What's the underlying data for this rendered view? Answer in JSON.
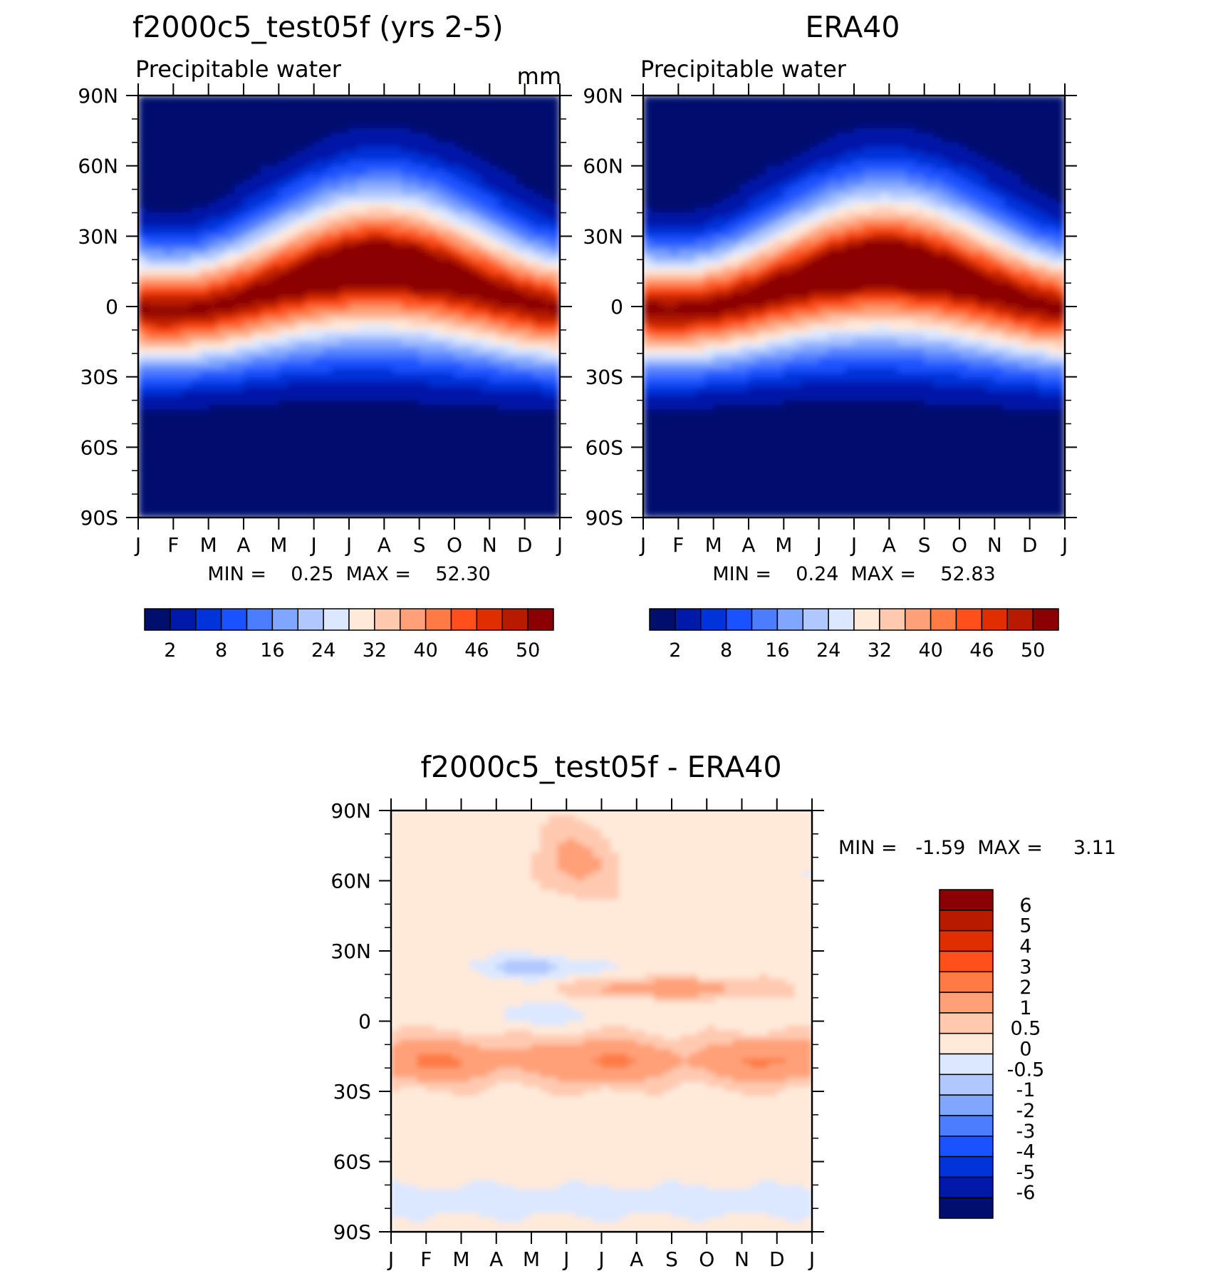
{
  "panels": [
    {
      "title": "f2000c5_test05f (yrs 2-5)",
      "left_label": "Precipitable water",
      "right_label": "mm",
      "min_max": "MIN =    0.25  MAX =    52.30",
      "min_value": 0.25,
      "max_value": 52.3
    },
    {
      "title": "ERA40",
      "left_label": "Precipitable water",
      "right_label": "",
      "min_max": "MIN =    0.24  MAX =    52.83",
      "min_value": 0.24,
      "max_value": 52.83
    },
    {
      "title": "f2000c5_test05f - ERA40",
      "left_label": "",
      "right_label": "",
      "min_max": "MIN =   -1.59  MAX =     3.11",
      "min_value": -1.59,
      "max_value": 3.11
    }
  ],
  "chart_data": [
    {
      "type": "heatmap",
      "title": "f2000c5_test05f (yrs 2-5)",
      "variable": "Precipitable water",
      "units": "mm",
      "x_ticks": [
        "J",
        "F",
        "M",
        "A",
        "M",
        "J",
        "J",
        "A",
        "S",
        "O",
        "N",
        "D",
        "J"
      ],
      "y_ticks": [
        "90N",
        "60N",
        "30N",
        "0",
        "30S",
        "60S",
        "90S"
      ],
      "xlim": [
        0,
        12
      ],
      "ylim": [
        -90,
        90
      ],
      "min": 0.25,
      "max": 52.3,
      "colorbar_labels": [
        "2",
        "8",
        "16",
        "24",
        "32",
        "40",
        "46",
        "50"
      ],
      "colorbar_colors": [
        "#000e6e",
        "#0019a8",
        "#0033d9",
        "#1a52ff",
        "#4d7dff",
        "#80a6ff",
        "#b0c8ff",
        "#dbe8ff",
        "#ffe9d9",
        "#ffc9b0",
        "#ffa078",
        "#ff7a45",
        "#ff4f1a",
        "#e02e00",
        "#b81a00",
        "#8b0000"
      ]
    },
    {
      "type": "heatmap",
      "title": "ERA40",
      "variable": "Precipitable water",
      "x_ticks": [
        "J",
        "F",
        "M",
        "A",
        "M",
        "J",
        "J",
        "A",
        "S",
        "O",
        "N",
        "D",
        "J"
      ],
      "y_ticks": [
        "90N",
        "60N",
        "30N",
        "0",
        "30S",
        "60S",
        "90S"
      ],
      "xlim": [
        0,
        12
      ],
      "ylim": [
        -90,
        90
      ],
      "min": 0.24,
      "max": 52.83,
      "colorbar_labels": [
        "2",
        "8",
        "16",
        "24",
        "32",
        "40",
        "46",
        "50"
      ],
      "colorbar_colors": [
        "#000e6e",
        "#0019a8",
        "#0033d9",
        "#1a52ff",
        "#4d7dff",
        "#80a6ff",
        "#b0c8ff",
        "#dbe8ff",
        "#ffe9d9",
        "#ffc9b0",
        "#ffa078",
        "#ff7a45",
        "#ff4f1a",
        "#e02e00",
        "#b81a00",
        "#8b0000"
      ]
    },
    {
      "type": "heatmap",
      "title": "f2000c5_test05f - ERA40",
      "x_ticks": [
        "J",
        "F",
        "M",
        "A",
        "M",
        "J",
        "J",
        "A",
        "S",
        "O",
        "N",
        "D",
        "J"
      ],
      "y_ticks": [
        "90N",
        "60N",
        "30N",
        "0",
        "30S",
        "60S",
        "90S"
      ],
      "xlim": [
        0,
        12
      ],
      "ylim": [
        -90,
        90
      ],
      "min": -1.59,
      "max": 3.11,
      "colorbar_labels": [
        "6",
        "5",
        "4",
        "3",
        "2",
        "1",
        "0.5",
        "0",
        "-0.5",
        "-1",
        "-2",
        "-3",
        "-4",
        "-5",
        "-6"
      ],
      "colorbar_colors": [
        "#8b0000",
        "#b81a00",
        "#e02e00",
        "#ff4f1a",
        "#ff7a45",
        "#ffa078",
        "#ffc9b0",
        "#ffe9d9",
        "#dbe8ff",
        "#b0c8ff",
        "#80a6ff",
        "#4d7dff",
        "#1a52ff",
        "#0033d9",
        "#0019a8",
        "#000e6e"
      ]
    }
  ]
}
